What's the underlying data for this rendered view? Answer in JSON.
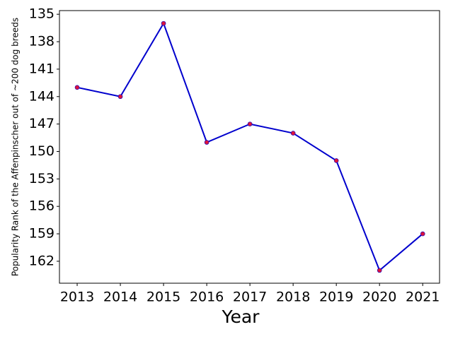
{
  "chart_data": {
    "type": "line",
    "x_label": "Year",
    "y_label": "Popularity Rank of the Affenpinscher out of ~200 dog breeds",
    "x": [
      2013,
      2014,
      2015,
      2016,
      2017,
      2018,
      2019,
      2020,
      2021
    ],
    "series": [
      {
        "name": "Affenpinscher",
        "color": "#0000cd",
        "marker_color": "#dc143c",
        "values": [
          143,
          144,
          136,
          149,
          147,
          148,
          151,
          163,
          159
        ]
      }
    ],
    "xlim": [
      2012.59,
      2021.39
    ],
    "xticks": [
      2013,
      2014,
      2015,
      2016,
      2017,
      2018,
      2019,
      2020,
      2021
    ],
    "ylim": [
      134.6,
      164.4
    ],
    "yticks": [
      135,
      138,
      141,
      144,
      147,
      150,
      153,
      156,
      159,
      162
    ],
    "y_inverted": true,
    "grid": false
  }
}
